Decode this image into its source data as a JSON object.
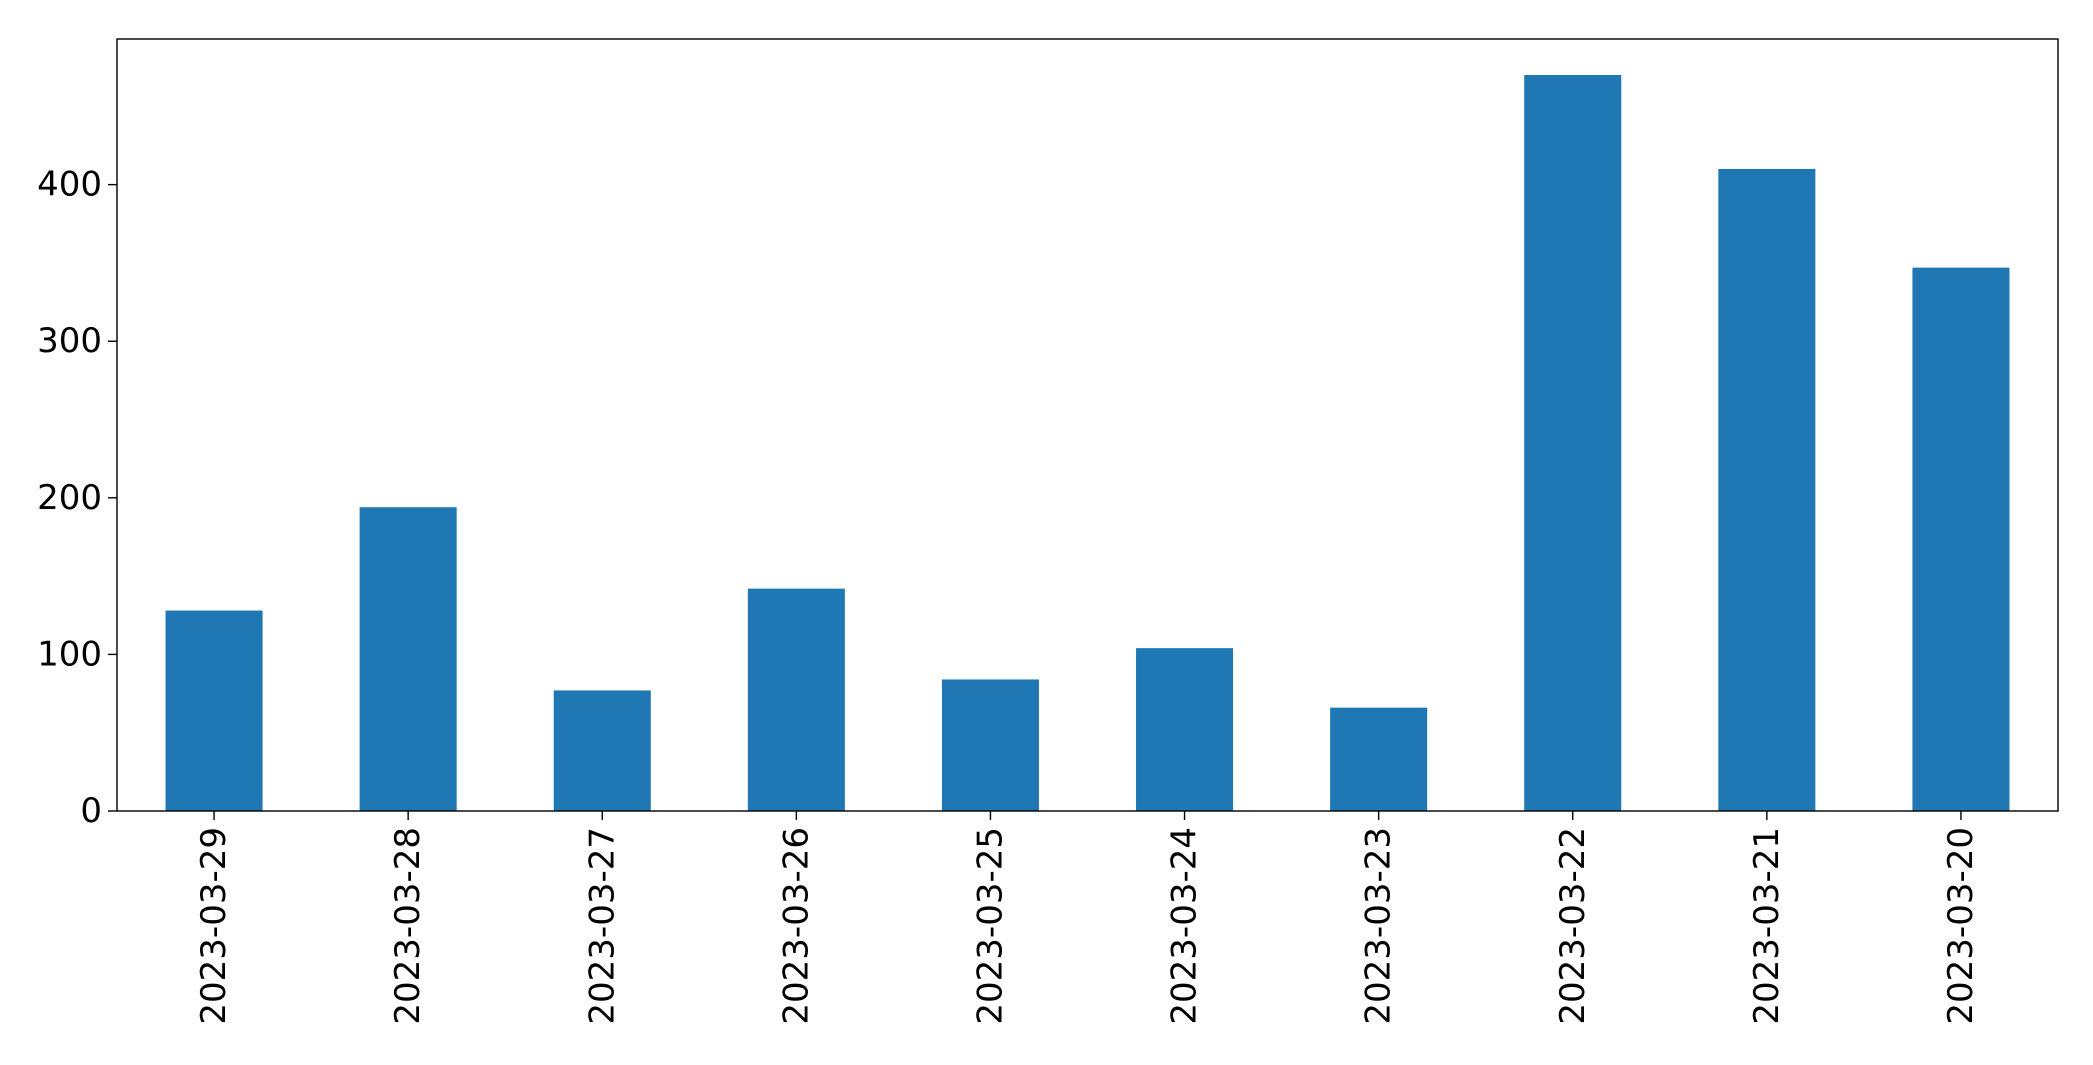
{
  "chart_data": {
    "type": "bar",
    "title": "",
    "xlabel": "",
    "ylabel": "",
    "categories": [
      "2023-03-29",
      "2023-03-28",
      "2023-03-27",
      "2023-03-26",
      "2023-03-25",
      "2023-03-24",
      "2023-03-23",
      "2023-03-22",
      "2023-03-21",
      "2023-03-20"
    ],
    "values": [
      128,
      194,
      77,
      142,
      84,
      104,
      66,
      470,
      410,
      347
    ],
    "ylim": [
      0,
      493
    ],
    "yticks": [
      0,
      100,
      200,
      300,
      400
    ],
    "ytick_labels": [
      "0",
      "100",
      "200",
      "300",
      "400"
    ],
    "grid": false,
    "legend": false,
    "colors": {
      "bar": "#1f77b4",
      "axis": "#000000",
      "background": "#ffffff"
    }
  }
}
